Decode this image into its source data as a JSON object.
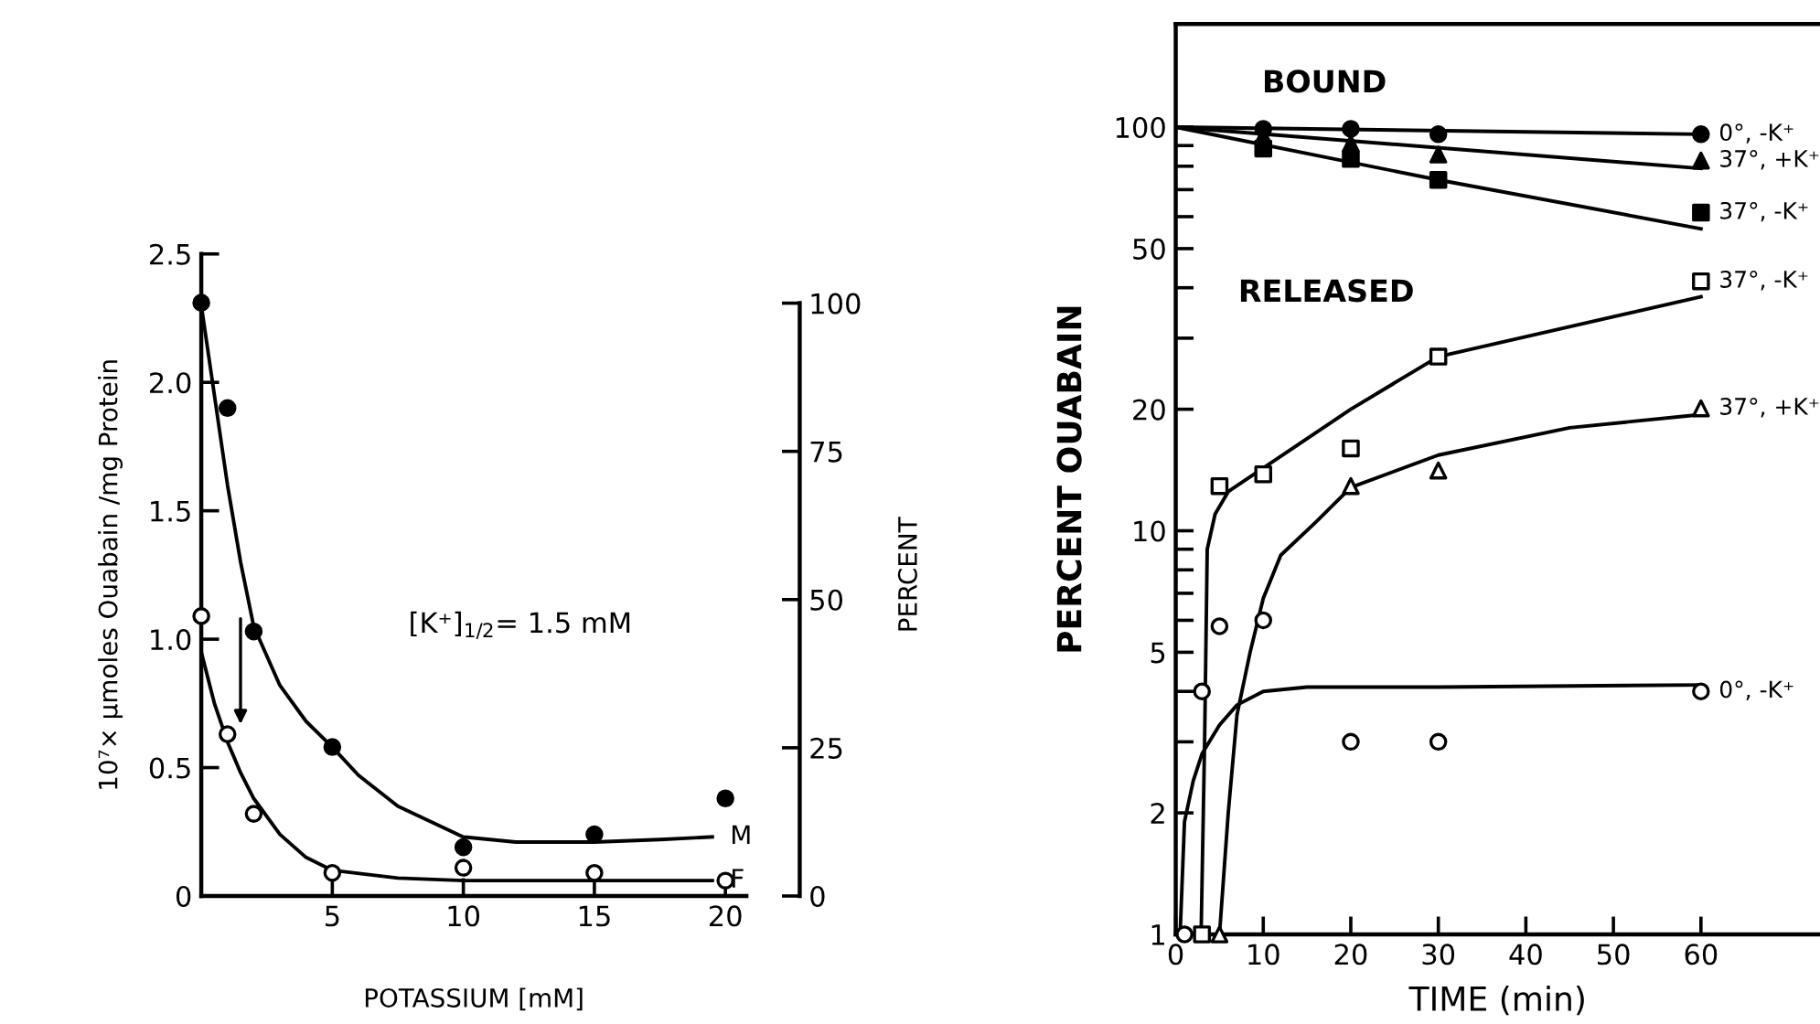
{
  "chart_data": [
    {
      "type": "scatter",
      "xlabel": "POTASSIUM [mM]",
      "ylabel": "10⁷× μmoles Ouabain /mg Protein",
      "y2label": "PERCENT",
      "annotations": [
        "[K⁺]$_{1/2}$= 1.5 mM"
      ],
      "xlim": [
        0,
        20.8
      ],
      "xticks": [
        5,
        10,
        15,
        20
      ],
      "ylim": [
        0,
        2.5
      ],
      "yticks": [
        0,
        0.5,
        {
          "value": 1,
          "label": "1.0"
        },
        1.5,
        {
          "value": 2,
          "label": "2.0"
        },
        2.5
      ],
      "y2lim": [
        0,
        108.3
      ],
      "y2ticks": [
        0,
        25,
        50,
        75,
        100
      ],
      "grid": false,
      "legend": false,
      "series": [
        {
          "type": "line",
          "name": "M",
          "color": "#000000",
          "marker": "none",
          "x": [
            0,
            0.5,
            1,
            1.5,
            2,
            3,
            4,
            5,
            6,
            7.5,
            10,
            12,
            15,
            17.5,
            19.5
          ],
          "values": [
            2.3,
            1.95,
            1.6,
            1.3,
            1.05,
            0.82,
            0.68,
            0.58,
            0.47,
            0.35,
            0.23,
            0.21,
            0.21,
            0.22,
            0.23
          ]
        },
        {
          "type": "line",
          "name": "F",
          "color": "#000000",
          "marker": "none",
          "x": [
            0,
            0.5,
            1,
            1.5,
            2,
            3,
            4,
            5,
            7.5,
            10,
            15,
            19.5
          ],
          "values": [
            0.95,
            0.75,
            0.6,
            0.48,
            0.38,
            0.24,
            0.15,
            0.1,
            0.07,
            0.06,
            0.06,
            0.06
          ]
        },
        {
          "color": "#000000",
          "marker": "circle",
          "x": [
            0,
            1,
            2,
            5,
            10,
            15,
            20
          ],
          "values": [
            2.31,
            1.9,
            1.03,
            0.58,
            0.19,
            0.24,
            0.38
          ]
        },
        {
          "color": "#ffffff",
          "marker": "circle",
          "x": [
            0,
            1,
            2,
            5,
            10,
            15,
            20
          ],
          "values": [
            1.09,
            0.63,
            0.32,
            0.09,
            0.11,
            0.09,
            0.06
          ]
        }
      ]
    },
    {
      "type": "scatter",
      "xlabel": "TIME (min)",
      "ylabel": "PERCENT OUABAIN",
      "annotations": [
        "BOUND",
        "RELEASED"
      ],
      "log": "y",
      "xlim": [
        0,
        73.6
      ],
      "xticks": [
        0,
        10,
        20,
        30,
        40,
        50,
        60
      ],
      "ylim": [
        1,
        180
      ],
      "yticks": [
        1,
        2,
        {
          "value": 3,
          "label": null
        },
        {
          "value": 4,
          "label": null
        },
        5,
        {
          "value": 6,
          "label": null
        },
        {
          "value": 7,
          "label": null
        },
        {
          "value": 8,
          "label": null
        },
        {
          "value": 9,
          "label": null
        },
        10,
        20,
        {
          "value": 30,
          "label": null
        },
        {
          "value": 40,
          "label": null
        },
        50,
        {
          "value": 60,
          "label": null
        },
        {
          "value": 70,
          "label": null
        },
        {
          "value": 80,
          "label": null
        },
        {
          "value": 90,
          "label": null
        },
        100
      ],
      "grid": false,
      "legend": false,
      "series": [
        {
          "type": "line",
          "color": "#000000",
          "marker": "none",
          "x": [
            0,
            60
          ],
          "values": [
            100,
            96
          ]
        },
        {
          "type": "line",
          "color": "#000000",
          "marker": "none",
          "x": [
            0,
            60
          ],
          "values": [
            100,
            79
          ]
        },
        {
          "type": "line",
          "color": "#000000",
          "marker": "none",
          "x": [
            0,
            30,
            60
          ],
          "values": [
            100,
            74,
            56
          ]
        },
        {
          "type": "line",
          "color": "#000000",
          "marker": "none",
          "x": [
            2.9,
            3.3,
            3.6,
            4.5,
            6,
            10,
            20,
            30,
            60
          ],
          "values": [
            1,
            3,
            9,
            11,
            12.5,
            14.3,
            20,
            27,
            38
          ]
        },
        {
          "type": "line",
          "color": "#000000",
          "marker": "none",
          "x": [
            5,
            6,
            7,
            8.5,
            10,
            12,
            16,
            20,
            30,
            45,
            60
          ],
          "values": [
            1,
            2,
            3.5,
            5,
            6.8,
            8.7,
            10.5,
            12.8,
            15.4,
            18,
            19.4
          ]
        },
        {
          "type": "line",
          "color": "#000000",
          "marker": "none",
          "x": [
            0.5,
            1,
            2,
            3,
            5,
            7,
            10,
            15,
            30,
            60
          ],
          "values": [
            1,
            1.9,
            2.4,
            2.8,
            3.3,
            3.7,
            4,
            4.1,
            4.1,
            4.15
          ]
        },
        {
          "name": "0°, -K⁺",
          "color": "#000000",
          "marker": "circle",
          "x": [
            10,
            20,
            30,
            60
          ],
          "values": [
            99,
            99,
            96,
            96
          ]
        },
        {
          "name": "37°, +K⁺",
          "color": "#000000",
          "marker": "triangle",
          "x": [
            10,
            20,
            30,
            60
          ],
          "values": [
            95,
            91,
            85.5,
            82.6
          ]
        },
        {
          "name": "37°, -K⁺",
          "color": "#000000",
          "marker": "square",
          "x": [
            10,
            20,
            30,
            60
          ],
          "values": [
            88.5,
            83.4,
            74,
            61.4
          ]
        },
        {
          "name": "37°, -K⁺",
          "color": "#ffffff",
          "marker": "square",
          "x": [
            3,
            5,
            10,
            20,
            30,
            60
          ],
          "values": [
            1,
            12.9,
            13.8,
            16,
            27,
            41.5
          ]
        },
        {
          "name": "37°, +K⁺",
          "color": "#ffffff",
          "marker": "triangle",
          "x": [
            5,
            10,
            20,
            30,
            60
          ],
          "values": [
            1,
            null,
            12.9,
            14.1,
            20.1
          ]
        },
        {
          "name": "0°, -K⁺",
          "color": "#ffffff",
          "marker": "circle",
          "x": [
            1,
            3,
            5,
            10,
            20,
            30,
            60
          ],
          "values": [
            1,
            4,
            5.8,
            6,
            3,
            3,
            4
          ]
        }
      ]
    }
  ]
}
